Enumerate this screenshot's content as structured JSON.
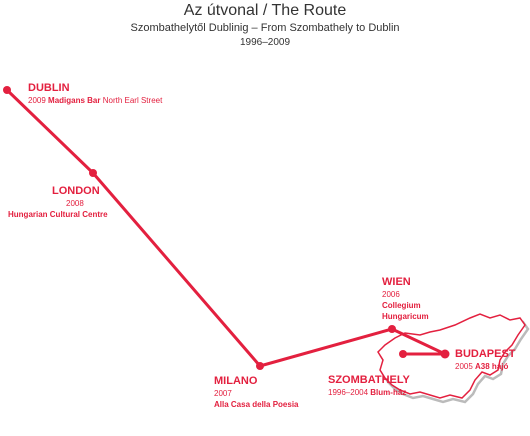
{
  "header": {
    "title": "Az útvonal / The Route",
    "subtitle": "Szombathelytől Dublinig – From Szombathely to Dublin",
    "years": "1996–2009"
  },
  "nodes": [
    {
      "name": "DUBLIN",
      "year": "2009",
      "place": "Madigans Bar",
      "address": "North Earl Street"
    },
    {
      "name": "LONDON",
      "year": "2008",
      "place": "Hungarian Cultural Centre"
    },
    {
      "name": "MILANO",
      "year": "2007",
      "place": "Alla Casa della Poesia"
    },
    {
      "name": "WIEN",
      "year": "2006",
      "place_lines": [
        "Collegium",
        "Hungaricum"
      ]
    },
    {
      "name": "BUDAPEST",
      "year": "2005",
      "place": "A38 hajó"
    },
    {
      "name": "SZOMBATHELY",
      "year": "1996–2004",
      "place": "Blum-ház"
    }
  ]
}
